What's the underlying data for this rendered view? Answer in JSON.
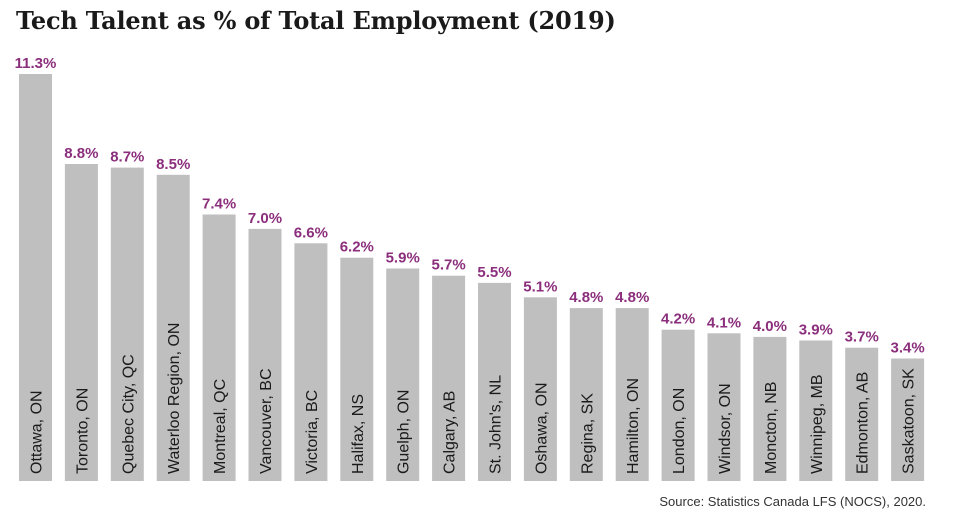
{
  "title": "Tech Talent as % of Total Employment (2019)",
  "source": "Source: Statistics Canada LFS (NOCS), 2020.",
  "colors": {
    "bar": "#bfbfbf",
    "value_label": "#8b2f7c",
    "bar_label": "#1a1a1a"
  },
  "chart_data": {
    "type": "bar",
    "title": "Tech Talent as % of Total Employment (2019)",
    "xlabel": "",
    "ylabel": "",
    "ylim": [
      0,
      11.3
    ],
    "grid": false,
    "categories": [
      "Ottawa, ON",
      "Toronto, ON",
      "Quebec City, QC",
      "Waterloo Region, ON",
      "Montreal, QC",
      "Vancouver, BC",
      "Victoria, BC",
      "Halifax, NS",
      "Guelph, ON",
      "Calgary, AB",
      "St. John's, NL",
      "Oshawa, ON",
      "Regina, SK",
      "Hamilton, ON",
      "London, ON",
      "Windsor, ON",
      "Moncton, NB",
      "Winnipeg, MB",
      "Edmonton, AB",
      "Saskatoon, SK"
    ],
    "values": [
      11.3,
      8.8,
      8.7,
      8.5,
      7.4,
      7.0,
      6.6,
      6.2,
      5.9,
      5.7,
      5.5,
      5.1,
      4.8,
      4.8,
      4.2,
      4.1,
      4.0,
      3.9,
      3.7,
      3.4
    ],
    "data_labels": [
      "11.3%",
      "8.8%",
      "8.7%",
      "8.5%",
      "7.4%",
      "7.0%",
      "6.6%",
      "6.2%",
      "5.9%",
      "5.7%",
      "5.5%",
      "5.1%",
      "4.8%",
      "4.8%",
      "4.2%",
      "4.1%",
      "4.0%",
      "3.9%",
      "3.7%",
      "3.4%"
    ]
  }
}
